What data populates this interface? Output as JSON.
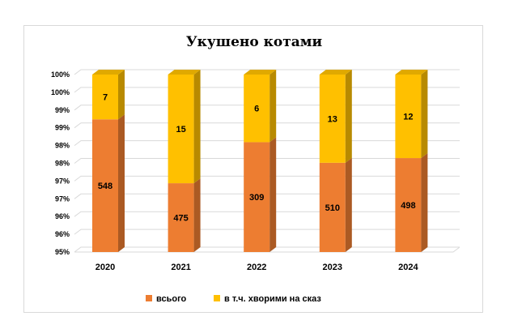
{
  "chart_data": {
    "type": "bar",
    "stacked": "percent",
    "three_d": true,
    "title": "Укушено котами",
    "categories": [
      "2020",
      "2021",
      "2022",
      "2023",
      "2024"
    ],
    "series": [
      {
        "name": "всього",
        "values": [
          548,
          475,
          309,
          510,
          498
        ],
        "color": "#ED7D31"
      },
      {
        "name": "в т.ч. хворими на сказ",
        "values": [
          7,
          15,
          6,
          13,
          12
        ],
        "color": "#FFC000"
      }
    ],
    "y_tick_labels": [
      "95%",
      "96%",
      "96%",
      "97%",
      "97%",
      "98%",
      "98%",
      "99%",
      "99%",
      "100%",
      "100%"
    ],
    "ylim": [
      0.95,
      1.0
    ],
    "grid": true,
    "legend_position": "bottom"
  }
}
